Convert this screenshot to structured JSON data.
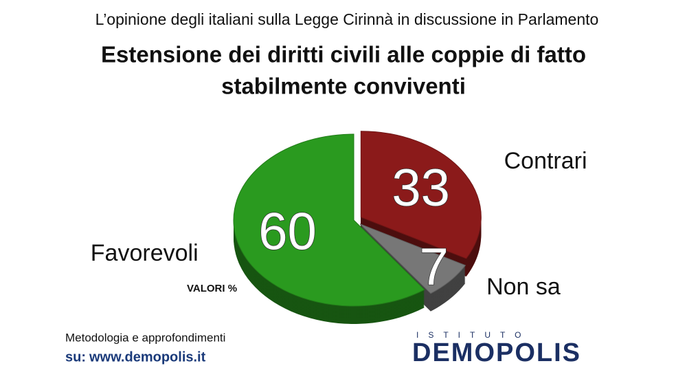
{
  "chart_data": {
    "type": "pie",
    "subtitle": "L’opinione degli italiani sulla Legge Cirinnà in discussione in Parlamento",
    "title": [
      "Estensione dei diritti civili alle coppie di fatto",
      "stabilmente conviventi"
    ],
    "categories": [
      "Contrari",
      "Non sa",
      "Favorevoli"
    ],
    "values": [
      33,
      7,
      60
    ],
    "colors": [
      "#8b1a1a",
      "#777777",
      "#2a9a1f"
    ],
    "annotation": "VALORI %",
    "footer": {
      "line1": "Metodologia e approfondimenti",
      "prefix": "su:",
      "link": "www.demopolis.it"
    },
    "logo": {
      "small": "ISTITUTO",
      "big": "DEMOPOLIS"
    }
  }
}
